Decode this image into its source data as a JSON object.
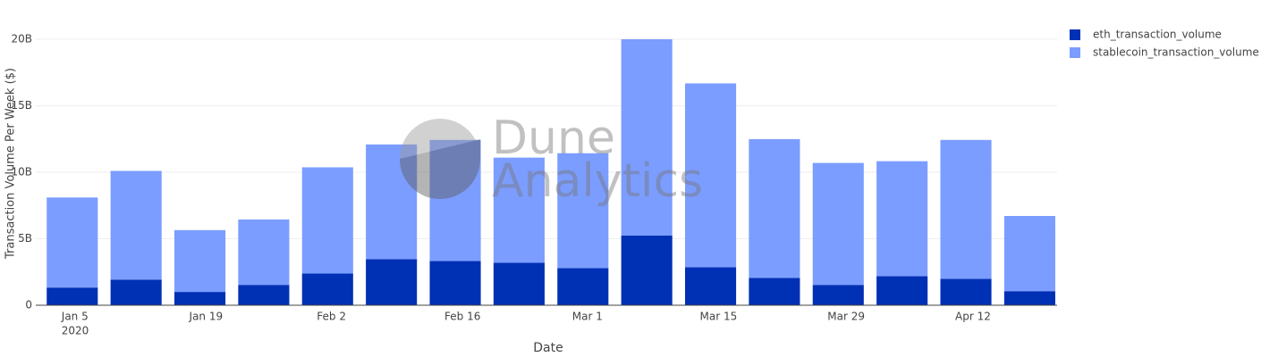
{
  "chart_data": {
    "type": "stacked_bar",
    "xlabel": "Date",
    "ylabel": "Transaction Volume Per Week ($)",
    "watermark": [
      "Dune",
      "Analytics"
    ],
    "x": [
      "2020-01-05",
      "2020-01-12",
      "2020-01-19",
      "2020-01-26",
      "2020-02-02",
      "2020-02-09",
      "2020-02-16",
      "2020-02-23",
      "2020-03-01",
      "2020-03-08",
      "2020-03-15",
      "2020-03-22",
      "2020-03-29",
      "2020-04-05",
      "2020-04-12",
      "2020-04-19"
    ],
    "xlim": [
      "2020-01-01",
      "2020-04-22"
    ],
    "xticks": [
      {
        "value": "2020-01-05",
        "label": "Jan 5"
      },
      {
        "value": "2020-01-19",
        "label": "Jan 19"
      },
      {
        "value": "2020-02-02",
        "label": "Feb 2"
      },
      {
        "value": "2020-02-16",
        "label": "Feb 16"
      },
      {
        "value": "2020-03-01",
        "label": "Mar 1"
      },
      {
        "value": "2020-03-15",
        "label": "Mar 15"
      },
      {
        "value": "2020-03-29",
        "label": "Mar 29"
      },
      {
        "value": "2020-04-12",
        "label": "Apr 12"
      }
    ],
    "x_year": "2020",
    "ylim": [
      0,
      20200000000
    ],
    "yticks": [
      {
        "value": 0,
        "label": "0"
      },
      {
        "value": 5000000000,
        "label": "5B"
      },
      {
        "value": 10000000000,
        "label": "10B"
      },
      {
        "value": 15000000000,
        "label": "15B"
      },
      {
        "value": 20000000000,
        "label": "20B"
      }
    ],
    "grid": true,
    "legend": "right",
    "series": [
      {
        "name": "eth_transaction_volume",
        "color": "#0030b4",
        "values": [
          1330000000,
          1930000000,
          1000000000,
          1530000000,
          2390000000,
          3460000000,
          3320000000,
          3190000000,
          2790000000,
          5250000000,
          2860000000,
          2060000000,
          1530000000,
          2190000000,
          1990000000,
          1060000000
        ]
      },
      {
        "name": "stablecoin_transaction_volume",
        "color": "#7b9dff",
        "values": [
          6770000000,
          8170000000,
          4650000000,
          4920000000,
          7980000000,
          8630000000,
          9110000000,
          7910000000,
          8640000000,
          14750000000,
          13820000000,
          10430000000,
          9170000000,
          8640000000,
          10440000000,
          5650000000
        ]
      }
    ]
  }
}
